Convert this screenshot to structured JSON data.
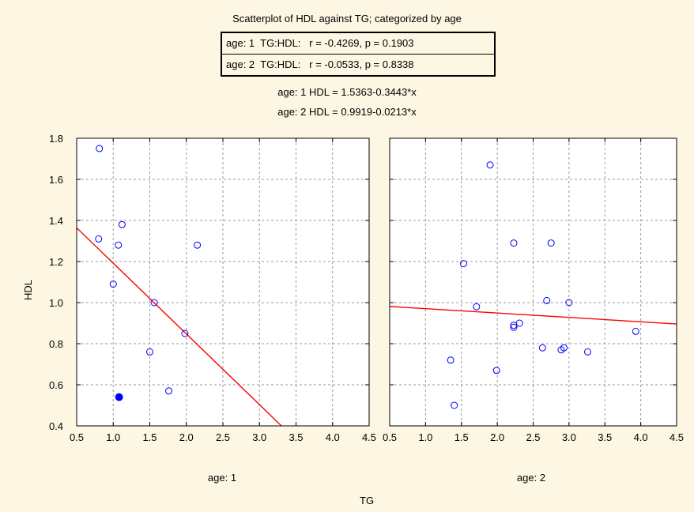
{
  "chart_data": {
    "type": "scatter",
    "title": "Scatterplot of  HDL against TG; categorized by  age",
    "stats": [
      "age: 1  TG:HDL:   r = -0.4269, p = 0.1903",
      "age: 2  TG:HDL:   r = -0.0533, p = 0.8338"
    ],
    "equations": [
      "age: 1 HDL = 1.5363-0.3443*x",
      "age: 2 HDL = 0.9919-0.0213*x"
    ],
    "xlabel": "TG",
    "ylabel": "HDL",
    "xlim": [
      0.5,
      4.5
    ],
    "ylim": [
      0.4,
      1.8
    ],
    "xticks": [
      "0.5",
      "1.0",
      "1.5",
      "2.0",
      "2.5",
      "3.0",
      "3.5",
      "4.0",
      "4.5"
    ],
    "yticks": [
      "0.4",
      "0.6",
      "0.8",
      "1.0",
      "1.2",
      "1.4",
      "1.6",
      "1.8"
    ],
    "grid": true,
    "marker_color": "#0000ff",
    "line_color": "#ff0000",
    "panels": [
      {
        "label": "age: 1",
        "intercept": 1.5363,
        "slope": -0.3443,
        "points": [
          {
            "x": 0.81,
            "y": 1.75
          },
          {
            "x": 0.8,
            "y": 1.31
          },
          {
            "x": 1.12,
            "y": 1.38
          },
          {
            "x": 1.07,
            "y": 1.28
          },
          {
            "x": 1.0,
            "y": 1.09
          },
          {
            "x": 1.56,
            "y": 1.0
          },
          {
            "x": 2.15,
            "y": 1.28
          },
          {
            "x": 1.98,
            "y": 0.85
          },
          {
            "x": 1.5,
            "y": 0.76
          },
          {
            "x": 1.76,
            "y": 0.57
          },
          {
            "x": 1.08,
            "y": 0.54,
            "filled": true
          }
        ]
      },
      {
        "label": "age: 2",
        "intercept": 0.9919,
        "slope": -0.0213,
        "points": [
          {
            "x": 1.9,
            "y": 1.67
          },
          {
            "x": 1.53,
            "y": 1.19
          },
          {
            "x": 2.23,
            "y": 1.29
          },
          {
            "x": 2.75,
            "y": 1.29
          },
          {
            "x": 1.71,
            "y": 0.98
          },
          {
            "x": 2.69,
            "y": 1.01
          },
          {
            "x": 3.0,
            "y": 1.0
          },
          {
            "x": 2.23,
            "y": 0.89
          },
          {
            "x": 2.31,
            "y": 0.9
          },
          {
            "x": 2.23,
            "y": 0.88
          },
          {
            "x": 3.93,
            "y": 0.86
          },
          {
            "x": 2.63,
            "y": 0.78
          },
          {
            "x": 2.89,
            "y": 0.77
          },
          {
            "x": 2.93,
            "y": 0.78
          },
          {
            "x": 3.26,
            "y": 0.76
          },
          {
            "x": 1.35,
            "y": 0.72
          },
          {
            "x": 1.99,
            "y": 0.67
          },
          {
            "x": 1.4,
            "y": 0.5
          }
        ]
      }
    ]
  }
}
